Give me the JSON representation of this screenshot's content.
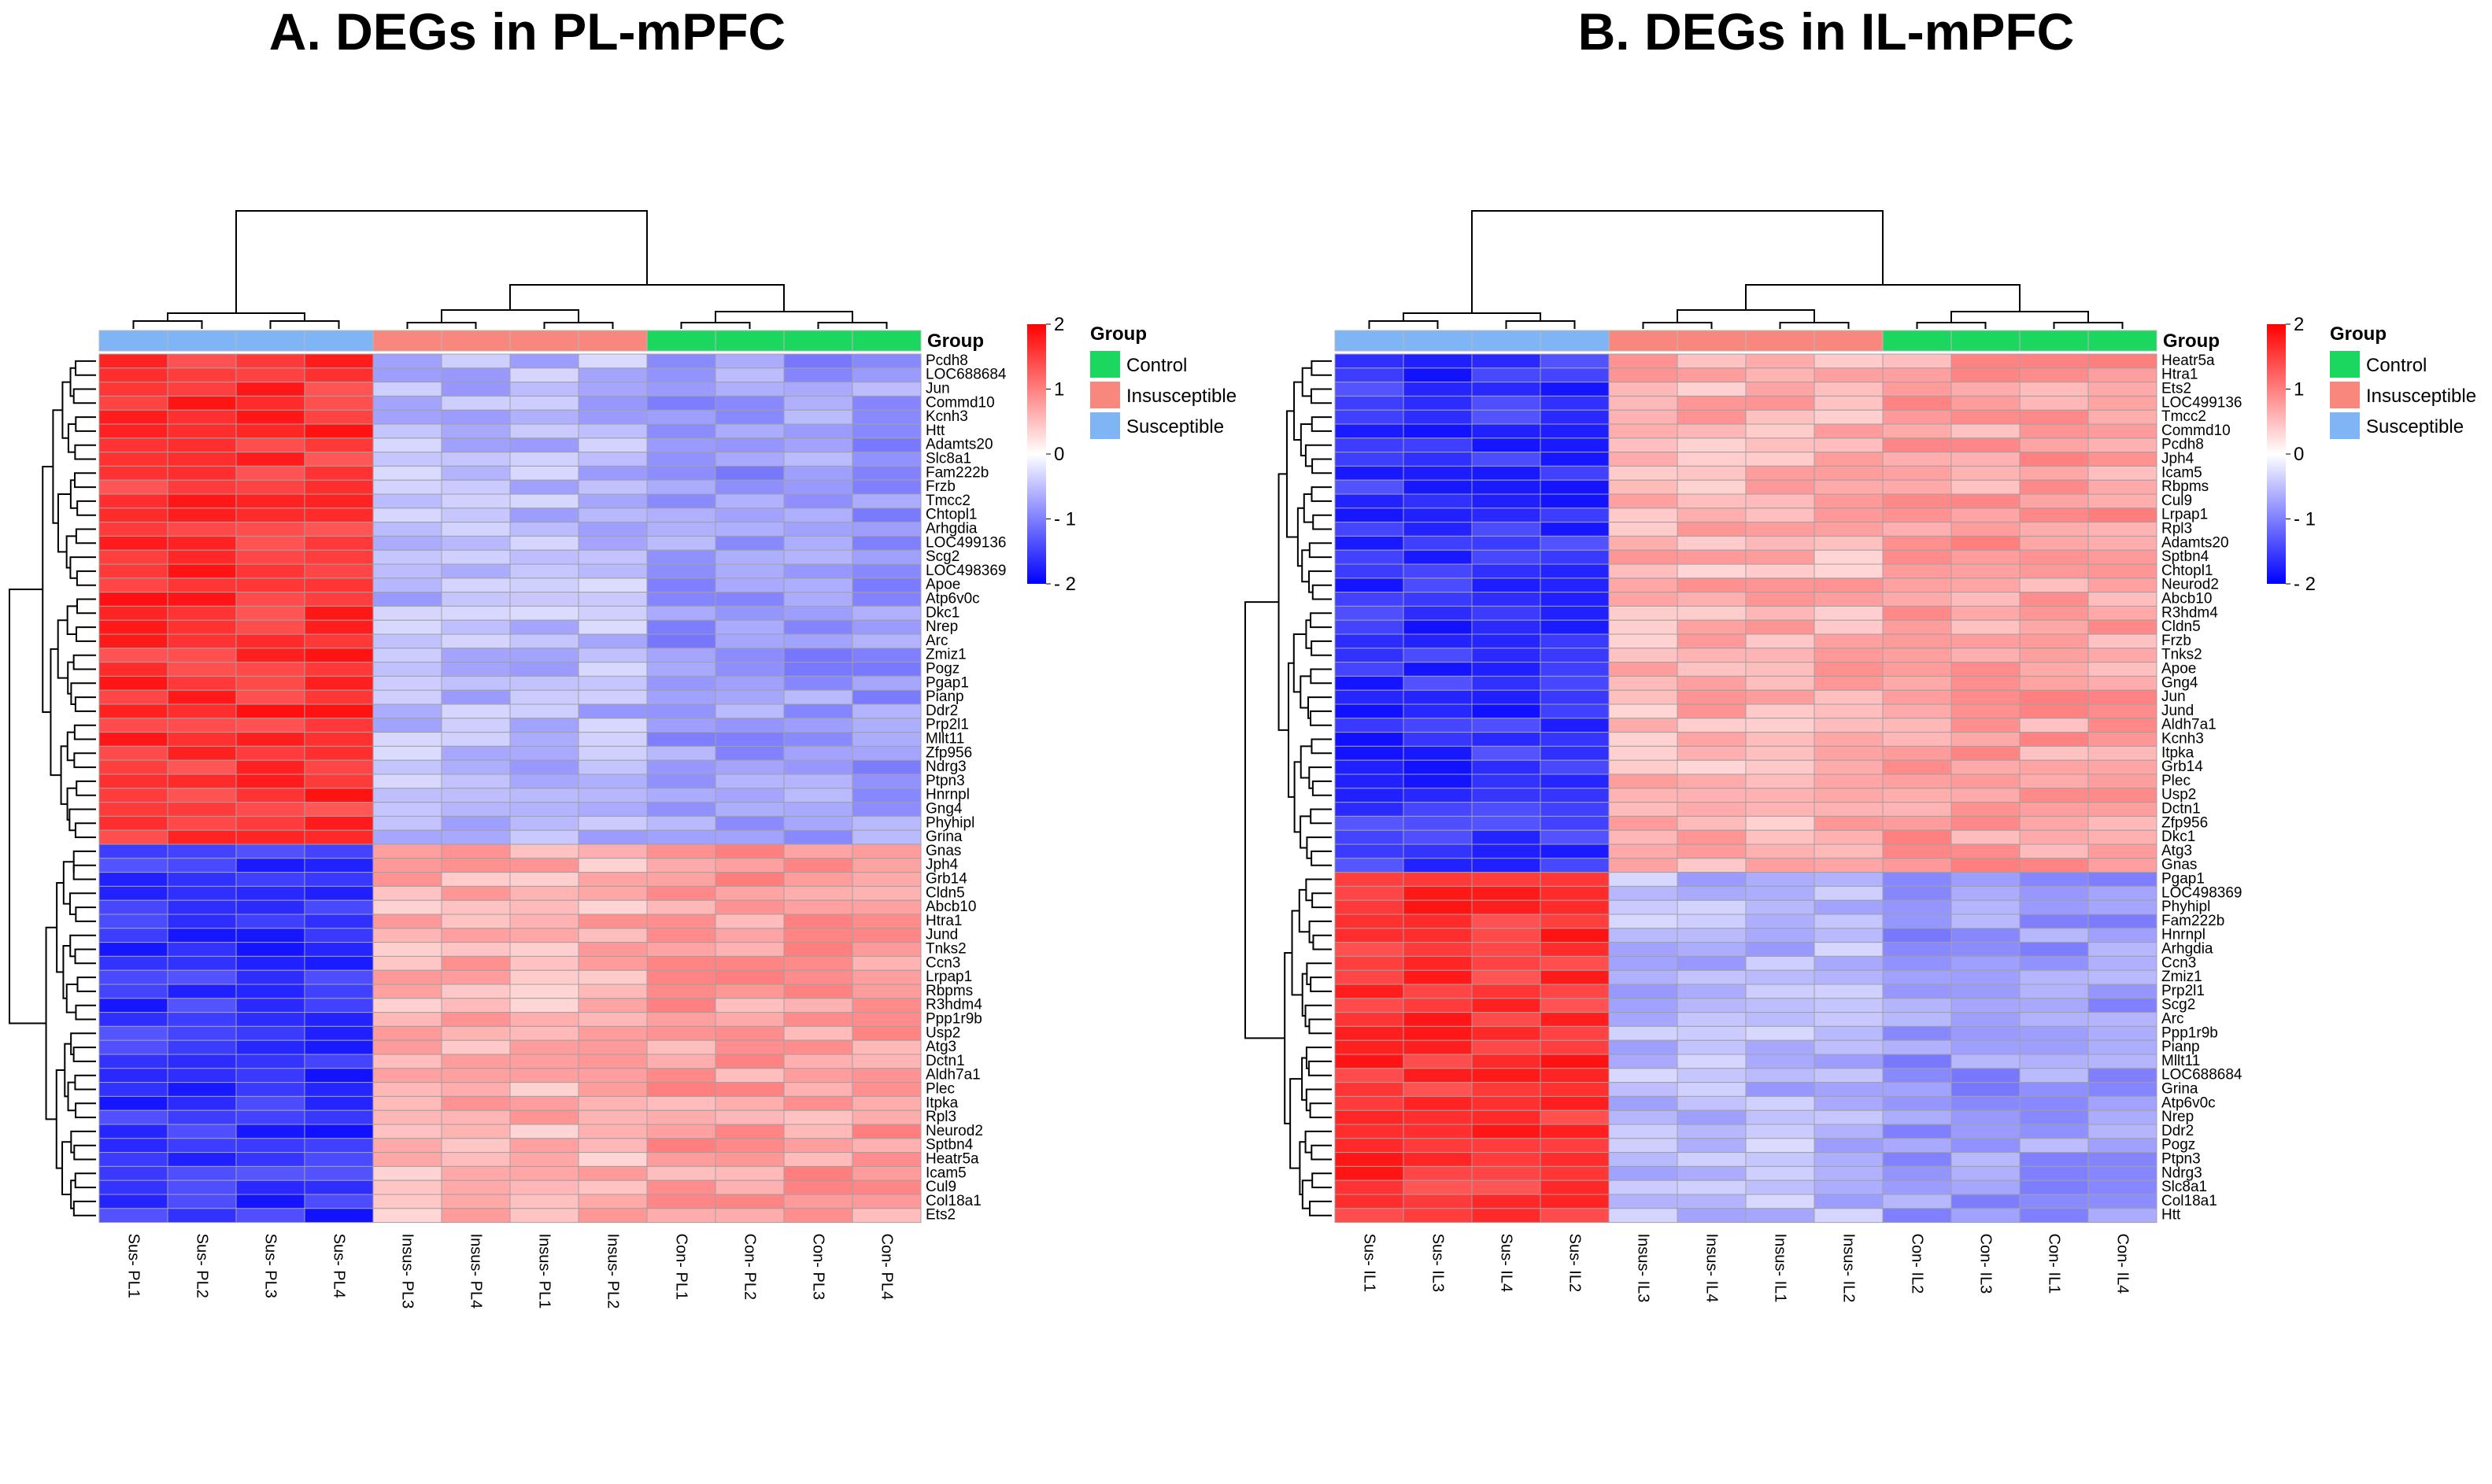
{
  "panels": [
    {
      "title": "A. DEGs in PL-mPFC",
      "group_header": "Group",
      "columns": [
        "Sus- PL1",
        "Sus- PL2",
        "Sus- PL3",
        "Sus- PL4",
        "Insus- PL3",
        "Insus- PL4",
        "Insus- PL1",
        "Insus- PL2",
        "Con- PL1",
        "Con- PL2",
        "Con- PL3",
        "Con- PL4"
      ],
      "column_groups": [
        "Susceptible",
        "Susceptible",
        "Susceptible",
        "Susceptible",
        "Insusceptible",
        "Insusceptible",
        "Insusceptible",
        "Insusceptible",
        "Control",
        "Control",
        "Control",
        "Control"
      ],
      "rows": [
        "Pcdh8",
        "LOC688684",
        "Jun",
        "Commd10",
        "Kcnh3",
        "Htt",
        "Adamts20",
        "Slc8a1",
        "Fam222b",
        "Frzb",
        "Tmcc2",
        "Chtopl1",
        "Arhgdia",
        "LOC499136",
        "Scg2",
        "LOC498369",
        "Apoe",
        "Atp6v0c",
        "Dkc1",
        "Nrep",
        "Arc",
        "Zmiz1",
        "Pogz",
        "Pgap1",
        "Pianp",
        "Ddr2",
        "Prp2l1",
        "Mllt11",
        "Zfp956",
        "Ndrg3",
        "Ptpn3",
        "Hnrnpl",
        "Gng4",
        "Phyhipl",
        "Grina",
        "Gnas",
        "Jph4",
        "Grb14",
        "Cldn5",
        "Abcb10",
        "Htra1",
        "Jund",
        "Tnks2",
        "Ccn3",
        "Lrpap1",
        "Rbpms",
        "R3hdm4",
        "Ppp1r9b",
        "Usp2",
        "Atg3",
        "Dctn1",
        "Aldh7a1",
        "Plec",
        "Itpka",
        "Rpl3",
        "Neurod2",
        "Sptbn4",
        "Heatr5a",
        "Icam5",
        "Cul9",
        "Col18a1",
        "Ets2"
      ],
      "top_block_rows": 35
    },
    {
      "title": "B. DEGs in IL-mPFC",
      "group_header": "Group",
      "columns": [
        "Sus- IL1",
        "Sus- IL3",
        "Sus- IL4",
        "Sus- IL2",
        "Insus- IL3",
        "Insus- IL4",
        "Insus- IL1",
        "Insus- IL2",
        "Con- IL2",
        "Con- IL3",
        "Con- IL1",
        "Con- IL4"
      ],
      "column_groups": [
        "Susceptible",
        "Susceptible",
        "Susceptible",
        "Susceptible",
        "Insusceptible",
        "Insusceptible",
        "Insusceptible",
        "Insusceptible",
        "Control",
        "Control",
        "Control",
        "Control"
      ],
      "rows": [
        "Heatr5a",
        "Htra1",
        "Ets2",
        "LOC499136",
        "Tmcc2",
        "Commd10",
        "Pcdh8",
        "Jph4",
        "Icam5",
        "Rbpms",
        "Cul9",
        "Lrpap1",
        "Rpl3",
        "Adamts20",
        "Sptbn4",
        "Chtopl1",
        "Neurod2",
        "Abcb10",
        "R3hdm4",
        "Cldn5",
        "Frzb",
        "Tnks2",
        "Apoe",
        "Gng4",
        "Jun",
        "Jund",
        "Aldh7a1",
        "Kcnh3",
        "Itpka",
        "Grb14",
        "Plec",
        "Usp2",
        "Dctn1",
        "Zfp956",
        "Dkc1",
        "Atg3",
        "Gnas",
        "Pgap1",
        "LOC498369",
        "Phyhipl",
        "Fam222b",
        "Hnrnpl",
        "Arhgdia",
        "Ccn3",
        "Zmiz1",
        "Prp2l1",
        "Scg2",
        "Arc",
        "Ppp1r9b",
        "Pianp",
        "Mllt11",
        "LOC688684",
        "Grina",
        "Atp6v0c",
        "Nrep",
        "Ddr2",
        "Pogz",
        "Ptpn3",
        "Ndrg3",
        "Slc8a1",
        "Col18a1",
        "Htt"
      ],
      "top_block_rows": 37
    }
  ],
  "legend": {
    "title": "Group",
    "items": [
      {
        "label": "Control",
        "color": "#1bd760"
      },
      {
        "label": "Insusceptible",
        "color": "#f8877e"
      },
      {
        "label": "Susceptible",
        "color": "#80b5f5"
      }
    ]
  },
  "colorbar": {
    "ticks": [
      "2",
      "1",
      "0",
      "- 1",
      "- 2"
    ],
    "min": -2,
    "max": 2,
    "colors": [
      "#0000ff",
      "#ffffff",
      "#ff0000"
    ]
  },
  "chart_data": [
    {
      "type": "heatmap",
      "title": "A. DEGs in PL-mPFC",
      "x": [
        "Sus- PL1",
        "Sus- PL2",
        "Sus- PL3",
        "Sus- PL4",
        "Insus- PL3",
        "Insus- PL4",
        "Insus- PL1",
        "Insus- PL2",
        "Con- PL1",
        "Con- PL2",
        "Con- PL3",
        "Con- PL4"
      ],
      "description": "Rows Pcdh8–Grina: high in Susceptible (~1.6), low in Insusceptible/Control (~-0.6 to -0.9); rows Gnas–Ets2: low in Susceptible (~-1.6), high in Insusceptible/Control (~0.3 to 0.9)",
      "zlim": [
        -2,
        2
      ]
    },
    {
      "type": "heatmap",
      "title": "B. DEGs in IL-mPFC",
      "x": [
        "Sus- IL1",
        "Sus- IL3",
        "Sus- IL4",
        "Sus- IL2",
        "Insus- IL3",
        "Insus- IL4",
        "Insus- IL1",
        "Insus- IL2",
        "Con- IL2",
        "Con- IL3",
        "Con- IL1",
        "Con- IL4"
      ],
      "description": "Rows Heatr5a–Gnas: low in Susceptible (~-1.6), high in Insusceptible/Control (~0.4 to 0.9); rows Pgap1–Htt: high in Susceptible (~1.6), low in Insusceptible/Control (~-0.4 to -0.9)",
      "zlim": [
        -2,
        2
      ]
    }
  ]
}
